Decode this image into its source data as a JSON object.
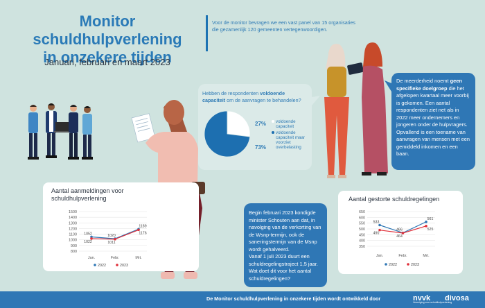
{
  "header": {
    "title_line1": "Monitor schuldhulpverlening",
    "title_line2": "in onzekere tijden",
    "subtitle": "Januari, februari en maart 2023",
    "intro_line1": "Voor de monitor bevragen we een vast panel van 15 organisaties",
    "intro_line2": "die gezamenlijk 120 gemeenten vertegenwoordigen."
  },
  "capacity": {
    "question_part1": "Hebben de respondenten ",
    "question_bold": "voldoende capaciteit",
    "question_part2": " om de aanvragen te behandelen?"
  },
  "majority_text": {
    "part1": "De meerderheid noemt ",
    "bold": "geen specifieke doelgroep",
    "part2": " die het afgelopen kwartaal meer voorbij is gekomen. Een aantal respondenten ziet net als in 2022 meer ondernemers en jongeren onder de hulpvragers. Opvallend is een toename van aanvragen van mensen met een gemiddeld inkomen en een baan."
  },
  "wsnp_text": {
    "para1": "Begin februari 2023 kondigde minister Schouten aan dat, in navolging van de verkorting van de Wsnp-termijn, ook de saneringstermijn van de Msnp wordt gehalveerd.",
    "para2": "Vanaf 1 juli 2023 duurt een schuldregelingstraject 1,5 jaar. Wat doet dit voor het aantal schuldregelingen?"
  },
  "footer": {
    "text": "De Monitor schuldhulpverlening in onzekere tijden wordt ontwikkeld door",
    "logo1": "nvvk",
    "logo1_sub": "Vereniging voor schuldhulpverlening",
    "logo2": "divosa"
  },
  "colors": {
    "blue": "#2f77b5",
    "red": "#e0303a",
    "light": "#dbeae8"
  },
  "chart_data": [
    {
      "type": "pie",
      "title": "",
      "labels": [
        "voldoende capaciteit",
        "voldoende capaciteit maar voorziet overbelasting"
      ],
      "values": [
        27,
        73
      ],
      "value_labels": [
        "27%",
        "73%"
      ],
      "colors": [
        "#ffffff",
        "#1d6fb0"
      ]
    },
    {
      "type": "line",
      "title": "Aantal aanmeldingen voor schuldhulpverlening",
      "categories": [
        "Jan.",
        "Febr.",
        "Mrt."
      ],
      "y_ticks": [
        "1500",
        "1400",
        "1300",
        "1200",
        "1100",
        "1000",
        "900",
        "800"
      ],
      "ylim": [
        800,
        1500
      ],
      "series": [
        {
          "name": "2022",
          "values": [
            1052,
            1020,
            1189
          ],
          "labels": [
            "1052",
            "1020",
            "1189"
          ],
          "color": "#2f77b5"
        },
        {
          "name": "2023",
          "values": [
            1022,
            1011,
            1176
          ],
          "labels": [
            "1022",
            "1011",
            "1176"
          ],
          "color": "#e0303a"
        }
      ]
    },
    {
      "type": "line",
      "title": "Aantal gestorte schuldregelingen",
      "categories": [
        "Jan.",
        "Febr.",
        "Mrt."
      ],
      "y_ticks": [
        "650",
        "600",
        "550",
        "500",
        "450",
        "400",
        "350"
      ],
      "ylim": [
        350,
        650
      ],
      "series": [
        {
          "name": "2022",
          "values": [
            533,
            466,
            561
          ],
          "labels": [
            "533",
            "466",
            "561"
          ],
          "color": "#2f77b5"
        },
        {
          "name": "2023",
          "values": [
            490,
            464,
            525
          ],
          "labels": [
            "490",
            "464",
            "525"
          ],
          "color": "#e0303a"
        }
      ]
    }
  ]
}
